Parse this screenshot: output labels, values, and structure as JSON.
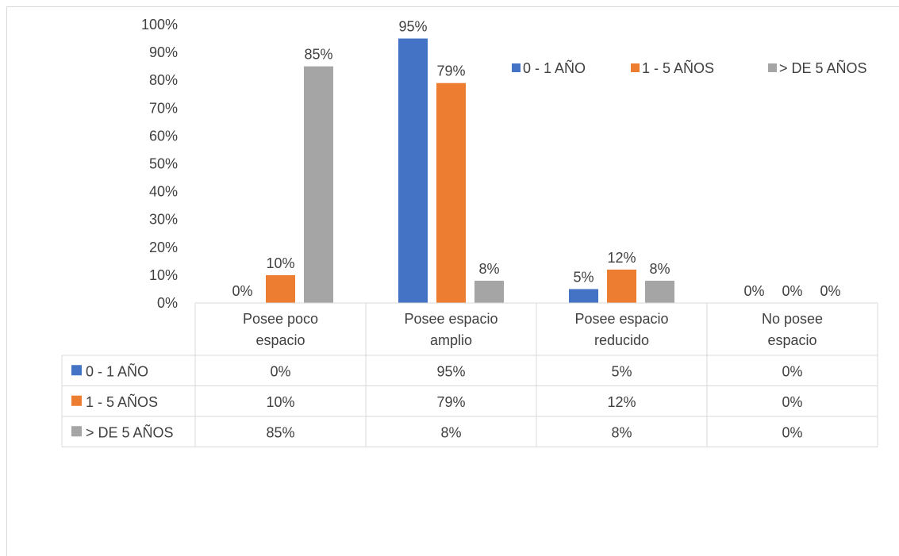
{
  "chart_data": {
    "type": "bar",
    "categories": [
      [
        "Posee poco",
        "espacio"
      ],
      [
        "Posee espacio",
        "amplio"
      ],
      [
        "Posee espacio",
        "reducido"
      ],
      [
        "No posee",
        "espacio"
      ]
    ],
    "series": [
      {
        "name": "0 - 1 AÑO",
        "color": "#4472c4",
        "values": [
          0,
          95,
          5,
          0
        ],
        "labels": [
          "0%",
          "95%",
          "5%",
          "0%"
        ]
      },
      {
        "name": "1 -  5 AÑOS",
        "color": "#ed7d31",
        "values": [
          10,
          79,
          12,
          0
        ],
        "labels": [
          "10%",
          "79%",
          "12%",
          "0%"
        ]
      },
      {
        "name": ">  DE 5 AÑOS",
        "color": "#a5a5a5",
        "values": [
          85,
          8,
          8,
          0
        ],
        "labels": [
          "85%",
          "8%",
          "8%",
          "0%"
        ]
      }
    ],
    "yticks": [
      "0%",
      "10%",
      "20%",
      "30%",
      "40%",
      "50%",
      "60%",
      "70%",
      "80%",
      "90%",
      "100%"
    ],
    "ylim": [
      0,
      100
    ],
    "legend": "top-right",
    "data_table": true
  }
}
